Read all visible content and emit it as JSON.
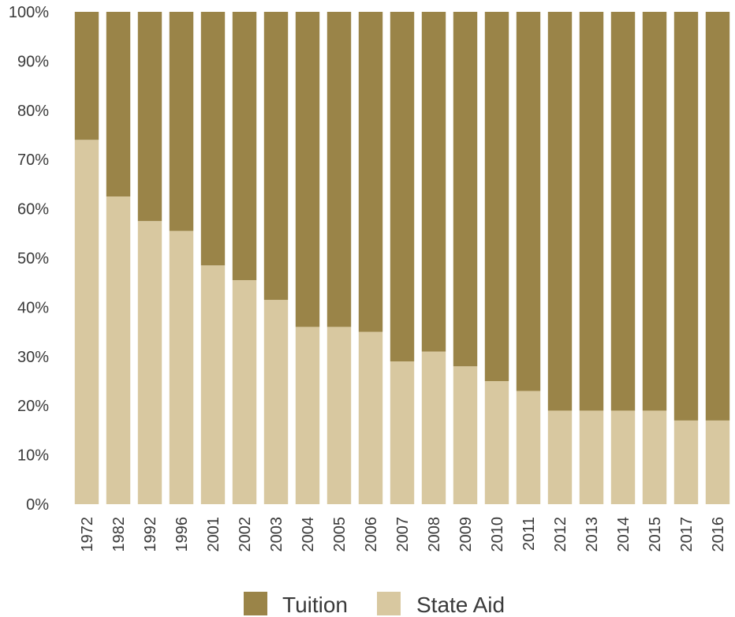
{
  "chart_data": {
    "type": "bar",
    "stacked": true,
    "title": "",
    "xlabel": "",
    "ylabel": "",
    "ylim": [
      0,
      100
    ],
    "yticks": [
      "0%",
      "10%",
      "20%",
      "30%",
      "40%",
      "50%",
      "60%",
      "70%",
      "80%",
      "90%",
      "100%"
    ],
    "categories": [
      "1972",
      "1982",
      "1992",
      "1996",
      "2001",
      "2002",
      "2003",
      "2004",
      "2005",
      "2006",
      "2007",
      "2008",
      "2009",
      "2010",
      "2011",
      "2012",
      "2013",
      "2014",
      "2015",
      "2017",
      "2016"
    ],
    "series": [
      {
        "name": "State Aid",
        "color": "#d8c8a0",
        "values": [
          74,
          62.5,
          57.5,
          55.5,
          48.5,
          45.5,
          41.5,
          36,
          36,
          35,
          29,
          31,
          28,
          25,
          23,
          19,
          19,
          19,
          19,
          17,
          17
        ]
      },
      {
        "name": "Tuition",
        "color": "#9a8448",
        "values": [
          26,
          37.5,
          42.5,
          44.5,
          51.5,
          54.5,
          58.5,
          64,
          64,
          65,
          71,
          69,
          72,
          75,
          77,
          81,
          81,
          81,
          81,
          83,
          83
        ]
      }
    ],
    "legend": {
      "position": "bottom",
      "items": [
        {
          "label": "Tuition",
          "color": "#9a8448"
        },
        {
          "label": "State Aid",
          "color": "#d8c8a0"
        }
      ]
    },
    "grid": false
  }
}
